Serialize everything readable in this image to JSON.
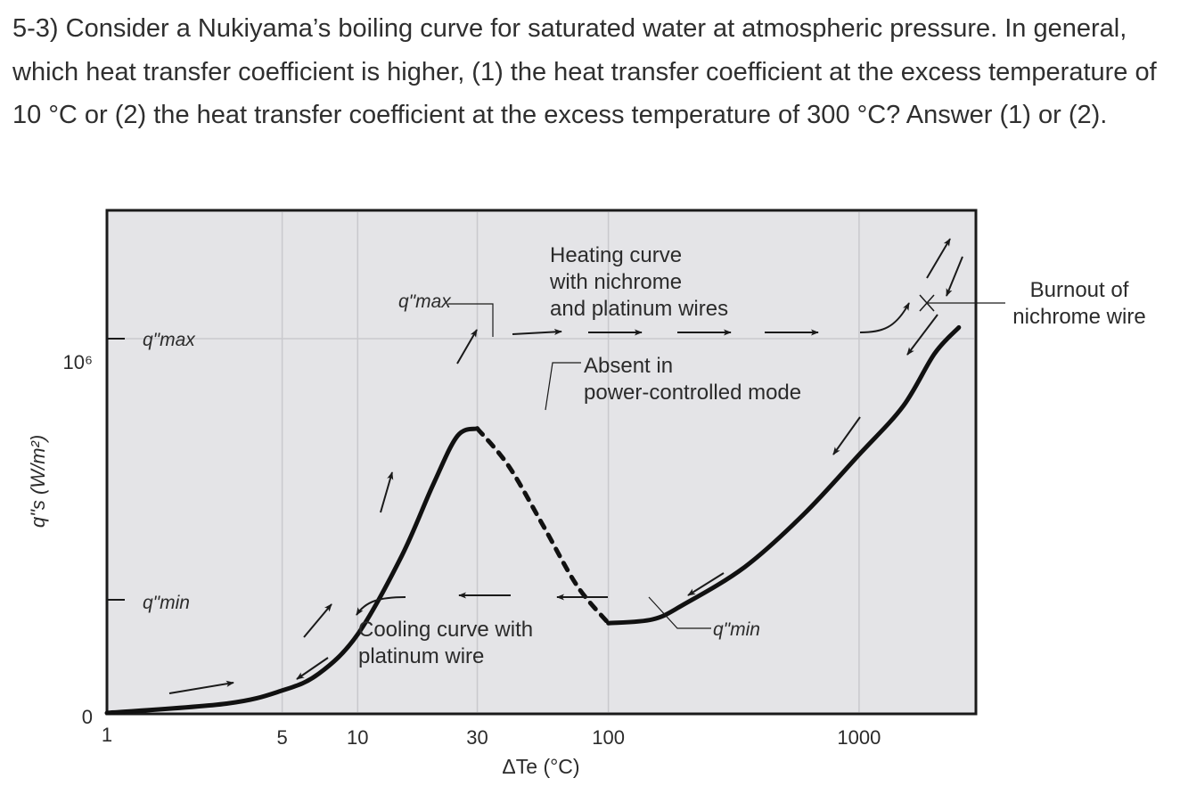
{
  "question": {
    "text": "5-3) Consider a Nukiyama’s boiling curve for saturated water at atmospheric pressure. In general, which heat transfer coefficient is higher, (1) the heat transfer coefficient at the excess temperature of 10 °C or (2) the heat transfer coefficient at the excess temperature of 300 °C? Answer (1) or (2)."
  },
  "chart_data": {
    "type": "line",
    "title": "",
    "xlabel": "ΔTe (°C)",
    "ylabel": "q\"s (W/m²)",
    "x_scale": "log",
    "xlim": [
      1,
      2500
    ],
    "x_ticks": [
      {
        "value": 1,
        "label": "1"
      },
      {
        "value": 5,
        "label": "5"
      },
      {
        "value": 10,
        "label": "10"
      },
      {
        "value": 30,
        "label": "30"
      },
      {
        "value": 100,
        "label": "100"
      },
      {
        "value": 1000,
        "label": "1000"
      }
    ],
    "y_ticks": [
      {
        "value": 0,
        "label": "0"
      },
      {
        "value": 1000000,
        "label": "10⁶"
      }
    ],
    "y_markers": [
      "q\"max",
      "q\"min"
    ],
    "grid": true,
    "series": [
      {
        "name": "",
        "style": "solid",
        "points": [
          [
            1,
            0.0
          ],
          [
            3,
            0.025
          ],
          [
            5,
            0.06
          ],
          [
            7,
            0.105
          ],
          [
            10,
            0.21
          ],
          [
            15,
            0.42
          ],
          [
            20,
            0.61
          ],
          [
            25,
            0.74
          ],
          [
            30,
            0.76
          ]
        ]
      },
      {
        "name": "",
        "style": "dashed",
        "points": [
          [
            30,
            0.76
          ],
          [
            40,
            0.66
          ],
          [
            55,
            0.5
          ],
          [
            75,
            0.34
          ],
          [
            100,
            0.24
          ]
        ]
      },
      {
        "name": "",
        "style": "solid",
        "points": [
          [
            100,
            0.24
          ],
          [
            150,
            0.25
          ],
          [
            200,
            0.29
          ],
          [
            350,
            0.39
          ],
          [
            600,
            0.53
          ],
          [
            1000,
            0.69
          ],
          [
            1500,
            0.82
          ],
          [
            2000,
            0.96
          ],
          [
            2500,
            1.03
          ]
        ]
      }
    ],
    "annotations": {
      "qmax_peak": "q\"max",
      "qmin_valley": "q\"min",
      "heating": "Heating curve with nichrome and platinum wires",
      "absent": "Absent in power-controlled mode",
      "cooling": "Cooling curve with platinum wire",
      "burnout": "Burnout of nichrome wire"
    }
  }
}
